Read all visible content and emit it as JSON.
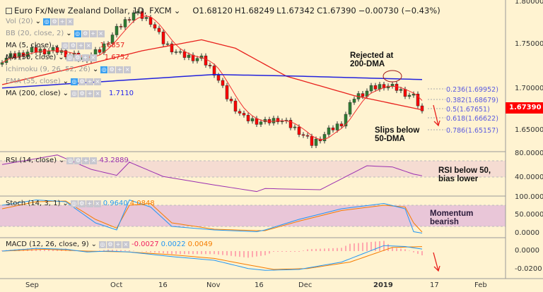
{
  "header": {
    "title": "Euro Fx/New Zealand Dollar, 1D, FXCM",
    "open": "O1.68120",
    "high": "H1.68249",
    "low": "L1.67342",
    "close": "C1.67390",
    "change": "−0.00730 (−0.43%)"
  },
  "legend": [
    {
      "label": "Vol (20)",
      "value": "",
      "muted": true
    },
    {
      "label": "BB (20, close, 2)",
      "value": "",
      "muted": true
    },
    {
      "label": "MA (5, close)",
      "value": "1.6857",
      "color": "#e8201c"
    },
    {
      "label": "MA (50, close)",
      "value": "1.6752",
      "color": "#e8201c"
    },
    {
      "label": "Ichimoku (9, 26, 52, 26)",
      "value": "",
      "muted": true
    },
    {
      "label": "EMA (55, close)",
      "value": "",
      "muted": true
    },
    {
      "label": "MA (200, close)",
      "value": "1.7110",
      "color": "#2222ee"
    }
  ],
  "price_axis": [
    "1.80000",
    "1.75000",
    "1.70000",
    "1.65000"
  ],
  "current_price": "1.67390",
  "fib_levels": [
    "0.236(1.69952)",
    "0.382(1.68679)",
    "0.5(1.67651)",
    "0.618(1.66622)",
    "0.786(1.65157)"
  ],
  "annotations": {
    "rejected": [
      "Rejected at",
      "200-DMA"
    ],
    "slips": [
      "Slips below",
      "50-DMA"
    ],
    "rsi_note": [
      "RSI below 50,",
      "bias lower"
    ],
    "momentum": [
      "Momentum",
      "bearish"
    ]
  },
  "rsi": {
    "label": "RSI (14, close)",
    "value": "43.2889",
    "axis": [
      "80.0000",
      "40.0000"
    ]
  },
  "stoch": {
    "label": "Stoch (14, 3, 1)",
    "k": "0.9640",
    "d": "4.0848",
    "axis": [
      "100.0000",
      "50.0000",
      "0.0000"
    ]
  },
  "macd": {
    "label": "MACD (12, 26, close, 9)",
    "hist": "-0.0027",
    "macd": "0.0022",
    "signal": "0.0049",
    "axis": [
      "0.0000",
      "-0.0200"
    ]
  },
  "time_axis": [
    "Sep",
    "Oct",
    "16",
    "Nov",
    "16",
    "Dec",
    "2019",
    "17",
    "Feb"
  ],
  "chart_data": {
    "type": "candlestick",
    "close_keypoints": [
      [
        0,
        1.735
      ],
      [
        7,
        1.745
      ],
      [
        13,
        1.745
      ],
      [
        19,
        1.735
      ],
      [
        23,
        1.745
      ],
      [
        27,
        1.77
      ],
      [
        31,
        1.79
      ],
      [
        35,
        1.78
      ],
      [
        38,
        1.755
      ],
      [
        42,
        1.74
      ],
      [
        47,
        1.735
      ],
      [
        50,
        1.72
      ],
      [
        53,
        1.69
      ],
      [
        57,
        1.665
      ],
      [
        62,
        1.66
      ],
      [
        65,
        1.665
      ],
      [
        70,
        1.65
      ],
      [
        73,
        1.635
      ],
      [
        77,
        1.65
      ],
      [
        80,
        1.66
      ],
      [
        83,
        1.69
      ],
      [
        87,
        1.7
      ],
      [
        90,
        1.705
      ],
      [
        93,
        1.7
      ],
      [
        97,
        1.69
      ],
      [
        99,
        1.6739
      ]
    ],
    "ma50_keypoints": [
      [
        0,
        1.705
      ],
      [
        17,
        1.725
      ],
      [
        33,
        1.745
      ],
      [
        47,
        1.758
      ],
      [
        55,
        1.748
      ],
      [
        67,
        1.715
      ],
      [
        83,
        1.692
      ],
      [
        99,
        1.6752
      ]
    ],
    "ma200_keypoints": [
      [
        0,
        1.701
      ],
      [
        50,
        1.717
      ],
      [
        70,
        1.715
      ],
      [
        99,
        1.711
      ]
    ],
    "rsi_keypoints": [
      [
        0,
        62
      ],
      [
        13,
        78
      ],
      [
        21,
        54
      ],
      [
        27,
        44
      ],
      [
        30,
        66
      ],
      [
        38,
        42
      ],
      [
        50,
        28
      ],
      [
        60,
        17
      ],
      [
        62,
        22
      ],
      [
        75,
        20
      ],
      [
        86,
        60
      ],
      [
        92,
        58
      ],
      [
        97,
        46
      ],
      [
        99,
        43.3
      ]
    ],
    "stoch_k_keypoints": [
      [
        0,
        80
      ],
      [
        8,
        95
      ],
      [
        15,
        90
      ],
      [
        22,
        30
      ],
      [
        27,
        10
      ],
      [
        30,
        95
      ],
      [
        35,
        75
      ],
      [
        40,
        20
      ],
      [
        50,
        10
      ],
      [
        60,
        5
      ],
      [
        62,
        10
      ],
      [
        70,
        40
      ],
      [
        80,
        70
      ],
      [
        90,
        85
      ],
      [
        95,
        70
      ],
      [
        97,
        5
      ],
      [
        99,
        1
      ]
    ],
    "stoch_d_keypoints": [
      [
        0,
        70
      ],
      [
        8,
        90
      ],
      [
        15,
        92
      ],
      [
        22,
        40
      ],
      [
        27,
        15
      ],
      [
        30,
        80
      ],
      [
        35,
        85
      ],
      [
        40,
        30
      ],
      [
        50,
        12
      ],
      [
        60,
        8
      ],
      [
        62,
        8
      ],
      [
        70,
        35
      ],
      [
        80,
        65
      ],
      [
        90,
        80
      ],
      [
        95,
        75
      ],
      [
        97,
        30
      ],
      [
        99,
        4
      ]
    ],
    "macd_keypoints": [
      [
        0,
        0.0
      ],
      [
        8,
        0.003
      ],
      [
        15,
        0.002
      ],
      [
        20,
        -0.001
      ],
      [
        25,
        0.0
      ],
      [
        30,
        -0.001
      ],
      [
        40,
        -0.006
      ],
      [
        50,
        -0.01
      ],
      [
        58,
        -0.019
      ],
      [
        62,
        -0.021
      ],
      [
        70,
        -0.02
      ],
      [
        80,
        -0.012
      ],
      [
        90,
        0.006
      ],
      [
        95,
        0.005
      ],
      [
        99,
        0.0022
      ]
    ],
    "signal_keypoints": [
      [
        0,
        0.0
      ],
      [
        10,
        0.002
      ],
      [
        20,
        0.0
      ],
      [
        30,
        -0.001
      ],
      [
        40,
        -0.004
      ],
      [
        50,
        -0.008
      ],
      [
        58,
        -0.015
      ],
      [
        64,
        -0.02
      ],
      [
        72,
        -0.019
      ],
      [
        82,
        -0.012
      ],
      [
        92,
        0.004
      ],
      [
        99,
        0.0049
      ]
    ]
  }
}
